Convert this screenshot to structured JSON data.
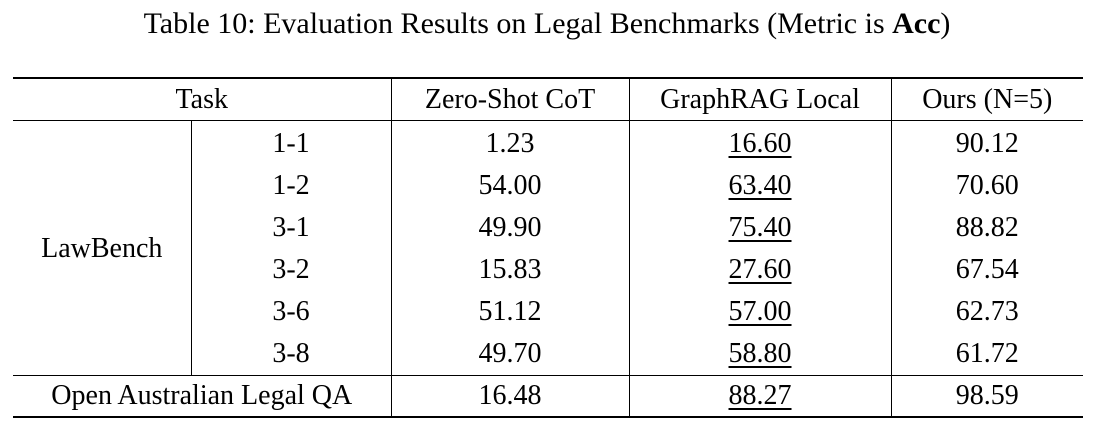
{
  "caption": {
    "prefix": "Table 10: Evaluation Results on Legal Benchmarks (Metric is ",
    "metric": "Acc",
    "suffix": ")"
  },
  "table": {
    "headers": {
      "task": "Task",
      "zero_shot": "Zero-Shot CoT",
      "graphrag": "GraphRAG Local",
      "ours": "Ours (N=5)"
    },
    "lawbench": {
      "label": "LawBench",
      "rows": [
        {
          "task": "1-1",
          "zero_shot": "1.23",
          "graphrag": "16.60",
          "ours": "90.12"
        },
        {
          "task": "1-2",
          "zero_shot": "54.00",
          "graphrag": "63.40",
          "ours": "70.60"
        },
        {
          "task": "3-1",
          "zero_shot": "49.90",
          "graphrag": "75.40",
          "ours": "88.82"
        },
        {
          "task": "3-2",
          "zero_shot": "15.83",
          "graphrag": "27.60",
          "ours": "67.54"
        },
        {
          "task": "3-6",
          "zero_shot": "51.12",
          "graphrag": "57.00",
          "ours": "62.73"
        },
        {
          "task": "3-8",
          "zero_shot": "49.70",
          "graphrag": "58.80",
          "ours": "61.72"
        }
      ]
    },
    "open_australian": {
      "label": "Open Australian Legal QA",
      "zero_shot": "16.48",
      "graphrag": "88.27",
      "ours": "98.59"
    }
  }
}
